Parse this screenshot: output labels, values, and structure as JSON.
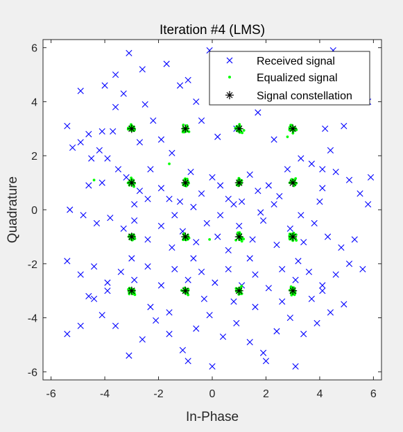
{
  "chart_data": {
    "type": "scatter",
    "title": "Iteration #4 (LMS)",
    "xlabel": "In-Phase",
    "ylabel": "Quadrature",
    "xlim": [
      -6.3,
      6.3
    ],
    "ylim": [
      -6.3,
      6.3
    ],
    "xticks": [
      -6,
      -4,
      -2,
      0,
      2,
      4,
      6
    ],
    "yticks": [
      -6,
      -4,
      -2,
      0,
      2,
      4,
      6
    ],
    "grid": false,
    "legend_position": "top-right",
    "series": [
      {
        "name": "Received signal",
        "marker": "x",
        "color": "#0000ff",
        "points": [
          [
            -5.4,
            3.1
          ],
          [
            -5.2,
            2.3
          ],
          [
            -4.9,
            4.4
          ],
          [
            -4.6,
            2.8
          ],
          [
            -4.5,
            1.9
          ],
          [
            -4.0,
            4.6
          ],
          [
            -4.1,
            2.9
          ],
          [
            -3.6,
            3.8
          ],
          [
            -3.3,
            4.3
          ],
          [
            -3.1,
            5.8
          ],
          [
            -2.6,
            5.2
          ],
          [
            -2.5,
            3.9
          ],
          [
            -2.2,
            3.3
          ],
          [
            -1.9,
            2.6
          ],
          [
            -1.5,
            2.1
          ],
          [
            -1.2,
            4.6
          ],
          [
            -0.9,
            4.8
          ],
          [
            -0.6,
            4.0
          ],
          [
            -0.1,
            5.9
          ],
          [
            0.4,
            5.3
          ],
          [
            0.7,
            4.3
          ],
          [
            1.3,
            5.0
          ],
          [
            1.7,
            3.6
          ],
          [
            1.9,
            4.6
          ],
          [
            2.4,
            4.1
          ],
          [
            2.9,
            5.4
          ],
          [
            3.3,
            4.6
          ],
          [
            3.6,
            4.1
          ],
          [
            4.2,
            3.0
          ],
          [
            4.9,
            3.1
          ],
          [
            4.5,
            5.9
          ],
          [
            5.2,
            4.2
          ],
          [
            5.8,
            4.0
          ],
          [
            -4.9,
            2.5
          ],
          [
            -4.2,
            2.2
          ],
          [
            -3.9,
            1.9
          ],
          [
            -3.5,
            1.5
          ],
          [
            -3.2,
            1.2
          ],
          [
            -2.7,
            0.7
          ],
          [
            -2.3,
            1.5
          ],
          [
            -1.9,
            0.8
          ],
          [
            -1.6,
            0.4
          ],
          [
            -1.2,
            0.3
          ],
          [
            -0.8,
            1.4
          ],
          [
            -0.4,
            0.6
          ],
          [
            0.0,
            1.2
          ],
          [
            0.3,
            0.9
          ],
          [
            0.6,
            0.4
          ],
          [
            1.1,
            0.3
          ],
          [
            1.4,
            1.3
          ],
          [
            1.7,
            0.7
          ],
          [
            2.1,
            0.9
          ],
          [
            2.5,
            0.5
          ],
          [
            2.8,
            1.5
          ],
          [
            3.3,
            1.9
          ],
          [
            3.7,
            1.7
          ],
          [
            4.1,
            1.5
          ],
          [
            4.6,
            1.4
          ],
          [
            5.1,
            1.1
          ],
          [
            5.9,
            1.2
          ],
          [
            5.5,
            0.6
          ],
          [
            5.8,
            0.2
          ],
          [
            -5.3,
            0.0
          ],
          [
            -4.8,
            -0.2
          ],
          [
            -4.3,
            -0.5
          ],
          [
            -3.8,
            -0.3
          ],
          [
            -3.3,
            -0.7
          ],
          [
            -2.9,
            -0.4
          ],
          [
            -2.4,
            -1.1
          ],
          [
            -1.9,
            -0.6
          ],
          [
            -1.5,
            -1.4
          ],
          [
            -1.1,
            -0.8
          ],
          [
            -0.6,
            -1.2
          ],
          [
            -0.2,
            -0.5
          ],
          [
            0.2,
            -1.0
          ],
          [
            0.6,
            -1.5
          ],
          [
            1.0,
            -0.6
          ],
          [
            1.5,
            -1.1
          ],
          [
            1.9,
            -0.4
          ],
          [
            2.4,
            -1.3
          ],
          [
            2.9,
            -0.7
          ],
          [
            3.4,
            -1.2
          ],
          [
            3.8,
            -0.5
          ],
          [
            4.3,
            -1.0
          ],
          [
            4.8,
            -1.4
          ],
          [
            5.3,
            -1.1
          ],
          [
            -5.4,
            -1.9
          ],
          [
            -4.9,
            -2.4
          ],
          [
            -4.4,
            -2.1
          ],
          [
            -3.9,
            -2.7
          ],
          [
            -3.4,
            -2.3
          ],
          [
            -2.9,
            -2.6
          ],
          [
            -2.4,
            -2.1
          ],
          [
            -1.9,
            -2.8
          ],
          [
            -1.4,
            -2.2
          ],
          [
            -0.9,
            -2.6
          ],
          [
            -0.4,
            -2.3
          ],
          [
            0.1,
            -2.7
          ],
          [
            0.6,
            -2.2
          ],
          [
            1.1,
            -2.8
          ],
          [
            1.6,
            -2.4
          ],
          [
            2.1,
            -2.9
          ],
          [
            2.6,
            -2.2
          ],
          [
            3.1,
            -2.6
          ],
          [
            3.6,
            -2.3
          ],
          [
            4.1,
            -2.8
          ],
          [
            4.6,
            -2.4
          ],
          [
            5.1,
            -2.0
          ],
          [
            5.6,
            -2.2
          ],
          [
            -5.4,
            -4.6
          ],
          [
            -4.9,
            -4.3
          ],
          [
            -4.1,
            -3.9
          ],
          [
            -3.6,
            -4.3
          ],
          [
            -3.1,
            -5.4
          ],
          [
            -2.6,
            -4.8
          ],
          [
            -2.1,
            -4.1
          ],
          [
            -1.6,
            -4.6
          ],
          [
            -1.1,
            -5.2
          ],
          [
            -0.6,
            -4.4
          ],
          [
            -0.1,
            -3.9
          ],
          [
            0.4,
            -4.7
          ],
          [
            0.9,
            -4.2
          ],
          [
            1.4,
            -4.9
          ],
          [
            1.9,
            -5.3
          ],
          [
            2.4,
            -4.5
          ],
          [
            2.9,
            -4.0
          ],
          [
            3.4,
            -4.6
          ],
          [
            3.9,
            -4.2
          ],
          [
            4.4,
            -3.8
          ],
          [
            4.9,
            -3.5
          ],
          [
            0.0,
            -5.8
          ],
          [
            -0.9,
            -5.6
          ],
          [
            3.1,
            -5.8
          ],
          [
            2.0,
            -5.6
          ],
          [
            -4.6,
            -3.2
          ],
          [
            -4.4,
            -3.3
          ],
          [
            -3.9,
            -3.0
          ],
          [
            -2.3,
            -3.6
          ],
          [
            -1.6,
            -3.8
          ],
          [
            -0.3,
            -3.3
          ],
          [
            0.8,
            -3.4
          ],
          [
            1.6,
            -3.6
          ],
          [
            2.6,
            -3.4
          ],
          [
            3.7,
            -3.3
          ],
          [
            4.1,
            -3.0
          ],
          [
            -2.9,
            0.2
          ],
          [
            -2.4,
            0.4
          ],
          [
            -1.4,
            -0.2
          ],
          [
            -0.7,
            0.1
          ],
          [
            0.3,
            -0.2
          ],
          [
            0.8,
            0.2
          ],
          [
            1.8,
            -0.1
          ],
          [
            2.3,
            0.2
          ],
          [
            3.3,
            -0.2
          ],
          [
            4.0,
            0.3
          ],
          [
            -3.6,
            5.0
          ],
          [
            -1.7,
            5.4
          ],
          [
            0.9,
            5.6
          ],
          [
            3.7,
            5.2
          ],
          [
            -0.4,
            3.3
          ],
          [
            0.2,
            2.7
          ],
          [
            0.9,
            3.0
          ],
          [
            2.3,
            2.6
          ],
          [
            -2.7,
            2.5
          ],
          [
            -3.7,
            2.9
          ],
          [
            -4.1,
            1.0
          ],
          [
            -4.6,
            0.9
          ],
          [
            4.4,
            2.2
          ],
          [
            4.1,
            0.8
          ],
          [
            -0.7,
            -1.8
          ],
          [
            1.4,
            -1.8
          ],
          [
            -3.0,
            -1.8
          ],
          [
            3.2,
            -1.9
          ]
        ]
      },
      {
        "name": "Equalized signal",
        "marker": ".",
        "color": "#00ff00",
        "clusters": [
          [
            -3,
            3
          ],
          [
            -1,
            3
          ],
          [
            1,
            3
          ],
          [
            3,
            3
          ],
          [
            -3,
            1
          ],
          [
            -1,
            1
          ],
          [
            1,
            1
          ],
          [
            3,
            1
          ],
          [
            -3,
            -1
          ],
          [
            -1,
            -1
          ],
          [
            1,
            -1
          ],
          [
            3,
            -1
          ],
          [
            -3,
            -3
          ],
          [
            -1,
            -3
          ],
          [
            1,
            -3
          ],
          [
            3,
            -3
          ]
        ],
        "spread": 0.25,
        "points_per_cluster": 28,
        "outliers": [
          [
            -4.4,
            1.1
          ],
          [
            -1.6,
            1.7
          ],
          [
            -0.1,
            -1.1
          ],
          [
            2.8,
            2.7
          ]
        ]
      },
      {
        "name": "Signal constellation",
        "marker": "*",
        "color": "#000000",
        "points": [
          [
            -3,
            3
          ],
          [
            -1,
            3
          ],
          [
            1,
            3
          ],
          [
            3,
            3
          ],
          [
            -3,
            1
          ],
          [
            -1,
            1
          ],
          [
            1,
            1
          ],
          [
            3,
            1
          ],
          [
            -3,
            -1
          ],
          [
            -1,
            -1
          ],
          [
            1,
            -1
          ],
          [
            3,
            -1
          ],
          [
            -3,
            -3
          ],
          [
            -1,
            -3
          ],
          [
            1,
            -3
          ],
          [
            3,
            -3
          ]
        ]
      }
    ]
  }
}
